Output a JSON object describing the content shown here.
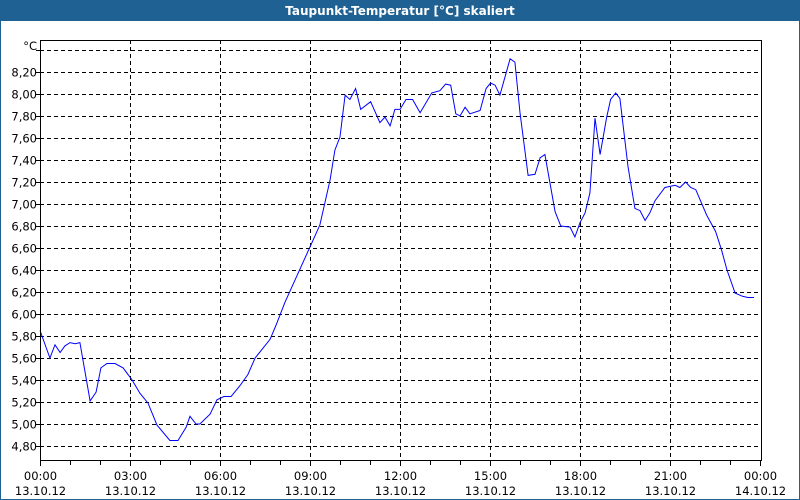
{
  "window": {
    "title": "Taupunkt-Temperatur [°C] skaliert"
  },
  "chart_data": {
    "type": "line",
    "title": "Taupunkt-Temperatur [°C] skaliert",
    "ylabel": "°C",
    "xlabel": "",
    "ylim": [
      4.673,
      8.491
    ],
    "xlim": [
      0,
      24
    ],
    "grid": true,
    "y_ticks": [
      {
        "value": 4.8,
        "label": "4,80"
      },
      {
        "value": 5.0,
        "label": "5,00"
      },
      {
        "value": 5.2,
        "label": "5,20"
      },
      {
        "value": 5.4,
        "label": "5,40"
      },
      {
        "value": 5.6,
        "label": "5,60"
      },
      {
        "value": 5.8,
        "label": "5,80"
      },
      {
        "value": 6.0,
        "label": "6,00"
      },
      {
        "value": 6.2,
        "label": "6,20"
      },
      {
        "value": 6.4,
        "label": "6,40"
      },
      {
        "value": 6.6,
        "label": "6,60"
      },
      {
        "value": 6.8,
        "label": "6,80"
      },
      {
        "value": 7.0,
        "label": "7,00"
      },
      {
        "value": 7.2,
        "label": "7,20"
      },
      {
        "value": 7.4,
        "label": "7,40"
      },
      {
        "value": 7.6,
        "label": "7,60"
      },
      {
        "value": 7.8,
        "label": "7,80"
      },
      {
        "value": 8.0,
        "label": "8,00"
      },
      {
        "value": 8.2,
        "label": "8,20"
      },
      {
        "value": 8.4,
        "label": ""
      }
    ],
    "x_ticks": [
      {
        "hour": 0,
        "time": "00:00",
        "date": "13.10.12"
      },
      {
        "hour": 3,
        "time": "03:00",
        "date": "13.10.12"
      },
      {
        "hour": 6,
        "time": "06:00",
        "date": "13.10.12"
      },
      {
        "hour": 9,
        "time": "09:00",
        "date": "13.10.12"
      },
      {
        "hour": 12,
        "time": "12:00",
        "date": "13.10.12"
      },
      {
        "hour": 15,
        "time": "15:00",
        "date": "13.10.12"
      },
      {
        "hour": 18,
        "time": "18:00",
        "date": "13.10.12"
      },
      {
        "hour": 21,
        "time": "21:00",
        "date": "13.10.12"
      },
      {
        "hour": 24,
        "time": "00:00",
        "date": "14.10.12"
      }
    ],
    "series": [
      {
        "name": "Taupunkt",
        "color": "#0000ff",
        "x": [
          0,
          0.33,
          0.5,
          0.67,
          0.83,
          1.0,
          1.17,
          1.33,
          1.67,
          1.87,
          2.03,
          2.23,
          2.5,
          2.77,
          3.07,
          3.33,
          3.6,
          3.9,
          4.33,
          4.6,
          4.87,
          5.0,
          5.2,
          5.33,
          5.67,
          5.9,
          6.13,
          6.37,
          6.67,
          6.93,
          7.17,
          7.67,
          7.87,
          8.17,
          9.1,
          9.33,
          9.67,
          9.83,
          10.0,
          10.17,
          10.33,
          10.52,
          10.69,
          11.02,
          11.33,
          11.5,
          11.67,
          11.83,
          12.0,
          12.2,
          12.42,
          12.67,
          13.06,
          13.33,
          13.52,
          13.69,
          13.86,
          14.0,
          14.17,
          14.33,
          14.67,
          14.87,
          15.02,
          15.17,
          15.33,
          15.67,
          15.83,
          16.0,
          16.27,
          16.5,
          16.67,
          16.83,
          17.17,
          17.36,
          17.67,
          17.83,
          18.0,
          18.17,
          18.33,
          18.5,
          18.67,
          18.89,
          19.02,
          19.19,
          19.33,
          19.6,
          19.83,
          20.0,
          20.17,
          20.33,
          20.5,
          20.83,
          21.17,
          21.33,
          21.52,
          21.69,
          21.86,
          22.22,
          22.52,
          22.72,
          22.9,
          23.17,
          23.43,
          23.6,
          23.8
        ],
        "y": [
          5.85,
          5.6,
          5.72,
          5.65,
          5.71,
          5.74,
          5.73,
          5.74,
          5.21,
          5.29,
          5.51,
          5.55,
          5.55,
          5.51,
          5.4,
          5.28,
          5.19,
          4.99,
          4.85,
          4.85,
          4.97,
          5.07,
          5.0,
          5.0,
          5.09,
          5.22,
          5.25,
          5.25,
          5.35,
          5.45,
          5.6,
          5.77,
          5.9,
          6.11,
          6.67,
          6.81,
          7.22,
          7.49,
          7.61,
          7.99,
          7.95,
          8.05,
          7.86,
          7.93,
          7.74,
          7.79,
          7.71,
          7.86,
          7.86,
          7.95,
          7.95,
          7.83,
          8.01,
          8.03,
          8.09,
          8.08,
          7.82,
          7.8,
          7.88,
          7.82,
          7.85,
          8.05,
          8.1,
          8.08,
          7.99,
          8.32,
          8.29,
          7.83,
          7.26,
          7.27,
          7.42,
          7.45,
          6.93,
          6.8,
          6.79,
          6.7,
          6.83,
          6.92,
          7.1,
          7.78,
          7.45,
          7.79,
          7.95,
          8.01,
          7.96,
          7.34,
          6.96,
          6.94,
          6.85,
          6.92,
          7.03,
          7.15,
          7.17,
          7.15,
          7.2,
          7.15,
          7.13,
          6.9,
          6.75,
          6.58,
          6.4,
          6.19,
          6.16,
          6.15,
          6.15
        ]
      }
    ]
  }
}
